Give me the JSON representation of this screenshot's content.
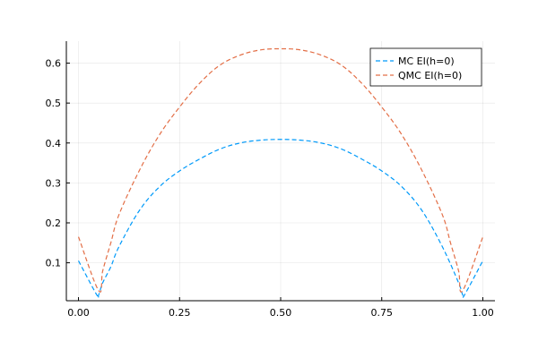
{
  "chart_data": {
    "type": "line",
    "title": "",
    "xlabel": "",
    "ylabel": "",
    "xlim": [
      -0.03,
      1.03
    ],
    "ylim": [
      0.005,
      0.655
    ],
    "xticks": [
      0.0,
      0.25,
      0.5,
      0.75,
      1.0
    ],
    "xtick_labels": [
      "0.00",
      "0.25",
      "0.50",
      "0.75",
      "1.00"
    ],
    "yticks": [
      0.1,
      0.2,
      0.3,
      0.4,
      0.5,
      0.6
    ],
    "ytick_labels": [
      "0.1",
      "0.2",
      "0.3",
      "0.4",
      "0.5",
      "0.6"
    ],
    "grid": true,
    "legend_position": "top-right",
    "series": [
      {
        "name": "MC EI(h=0)",
        "color": "#009AFA",
        "style": "dashed",
        "x": [
          0.0,
          0.045,
          0.05,
          0.06,
          0.08,
          0.1,
          0.15,
          0.2,
          0.25,
          0.3,
          0.35,
          0.4,
          0.45,
          0.5,
          0.55,
          0.6,
          0.65,
          0.7,
          0.75,
          0.8,
          0.85,
          0.9,
          0.94,
          0.95,
          0.955,
          1.0
        ],
        "y": [
          0.105,
          0.02,
          0.02,
          0.05,
          0.09,
          0.14,
          0.23,
          0.29,
          0.33,
          0.36,
          0.385,
          0.4,
          0.407,
          0.409,
          0.407,
          0.4,
          0.385,
          0.36,
          0.33,
          0.29,
          0.23,
          0.14,
          0.05,
          0.02,
          0.02,
          0.105
        ]
      },
      {
        "name": "QMC EI(h=0)",
        "color": "#E36F47",
        "style": "dashed",
        "x": [
          0.0,
          0.05,
          0.06,
          0.08,
          0.1,
          0.15,
          0.2,
          0.25,
          0.3,
          0.35,
          0.4,
          0.45,
          0.5,
          0.55,
          0.6,
          0.65,
          0.7,
          0.75,
          0.8,
          0.85,
          0.9,
          0.92,
          0.94,
          0.95,
          1.0
        ],
        "y": [
          0.165,
          0.03,
          0.08,
          0.15,
          0.22,
          0.33,
          0.42,
          0.49,
          0.55,
          0.595,
          0.62,
          0.633,
          0.636,
          0.633,
          0.62,
          0.595,
          0.55,
          0.49,
          0.42,
          0.33,
          0.22,
          0.15,
          0.08,
          0.03,
          0.165
        ]
      }
    ]
  }
}
